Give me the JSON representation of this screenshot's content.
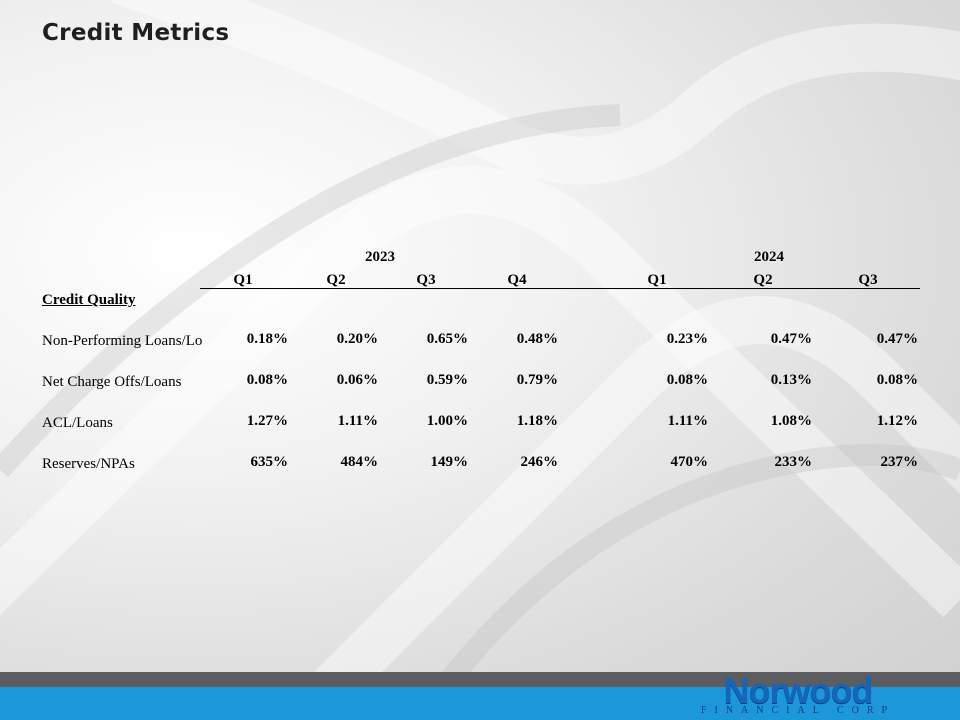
{
  "slide": {
    "title": "Credit Metrics"
  },
  "table": {
    "years": [
      "2023",
      "2024"
    ],
    "quarters": [
      "Q1",
      "Q2",
      "Q3",
      "Q4",
      "Q1",
      "Q2",
      "Q3"
    ],
    "section_label": "Credit Quality",
    "rows": [
      {
        "label": "Non-Performing Loans/Lo",
        "values": [
          "0.18%",
          "0.20%",
          "0.65%",
          "0.48%",
          "0.23%",
          "0.47%",
          "0.47%"
        ]
      },
      {
        "label": "Net Charge Offs/Loans",
        "values": [
          "0.08%",
          "0.06%",
          "0.59%",
          "0.79%",
          "0.08%",
          "0.13%",
          "0.08%"
        ]
      },
      {
        "label": "ACL/Loans",
        "values": [
          "1.27%",
          "1.11%",
          "1.00%",
          "1.18%",
          "1.11%",
          "1.08%",
          "1.12%"
        ]
      },
      {
        "label": "Reserves/NPAs",
        "values": [
          "635%",
          "484%",
          "149%",
          "246%",
          "470%",
          "233%",
          "237%"
        ]
      }
    ]
  },
  "footer": {
    "logo_name": "Norwood",
    "logo_subtitle": "FINANCIAL CORP",
    "colors": {
      "bar_gray": "#5b5d60",
      "bar_blue": "#1c97d9",
      "logo_blue": "#1565b8"
    }
  }
}
